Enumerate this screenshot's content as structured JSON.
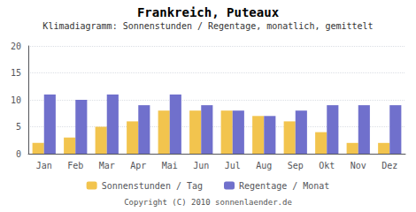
{
  "chart_data": {
    "type": "bar",
    "title": "Frankreich, Puteaux",
    "subtitle": "Klimadiagramm: Sonnenstunden / Regentage, monatlich, gemittelt",
    "categories": [
      "Jan",
      "Feb",
      "Mar",
      "Apr",
      "Mai",
      "Jun",
      "Jul",
      "Aug",
      "Sep",
      "Okt",
      "Nov",
      "Dez"
    ],
    "series": [
      {
        "name": "Sonnenstunden / Tag",
        "color": "#f2c44e",
        "values": [
          2,
          3,
          5,
          6,
          8,
          8,
          8,
          7,
          6,
          4,
          2,
          2
        ]
      },
      {
        "name": "Regentage / Monat",
        "color": "#7070cc",
        "values": [
          11,
          10,
          11,
          9,
          11,
          9,
          8,
          7,
          8,
          9,
          9,
          9
        ]
      }
    ],
    "ylim": [
      0,
      20
    ],
    "yticks": [
      0,
      5,
      10,
      15,
      20
    ],
    "grid": true,
    "legend": "bottom",
    "annotations": [
      "Copyright (C) 2010 sonnenlaender.de"
    ]
  }
}
